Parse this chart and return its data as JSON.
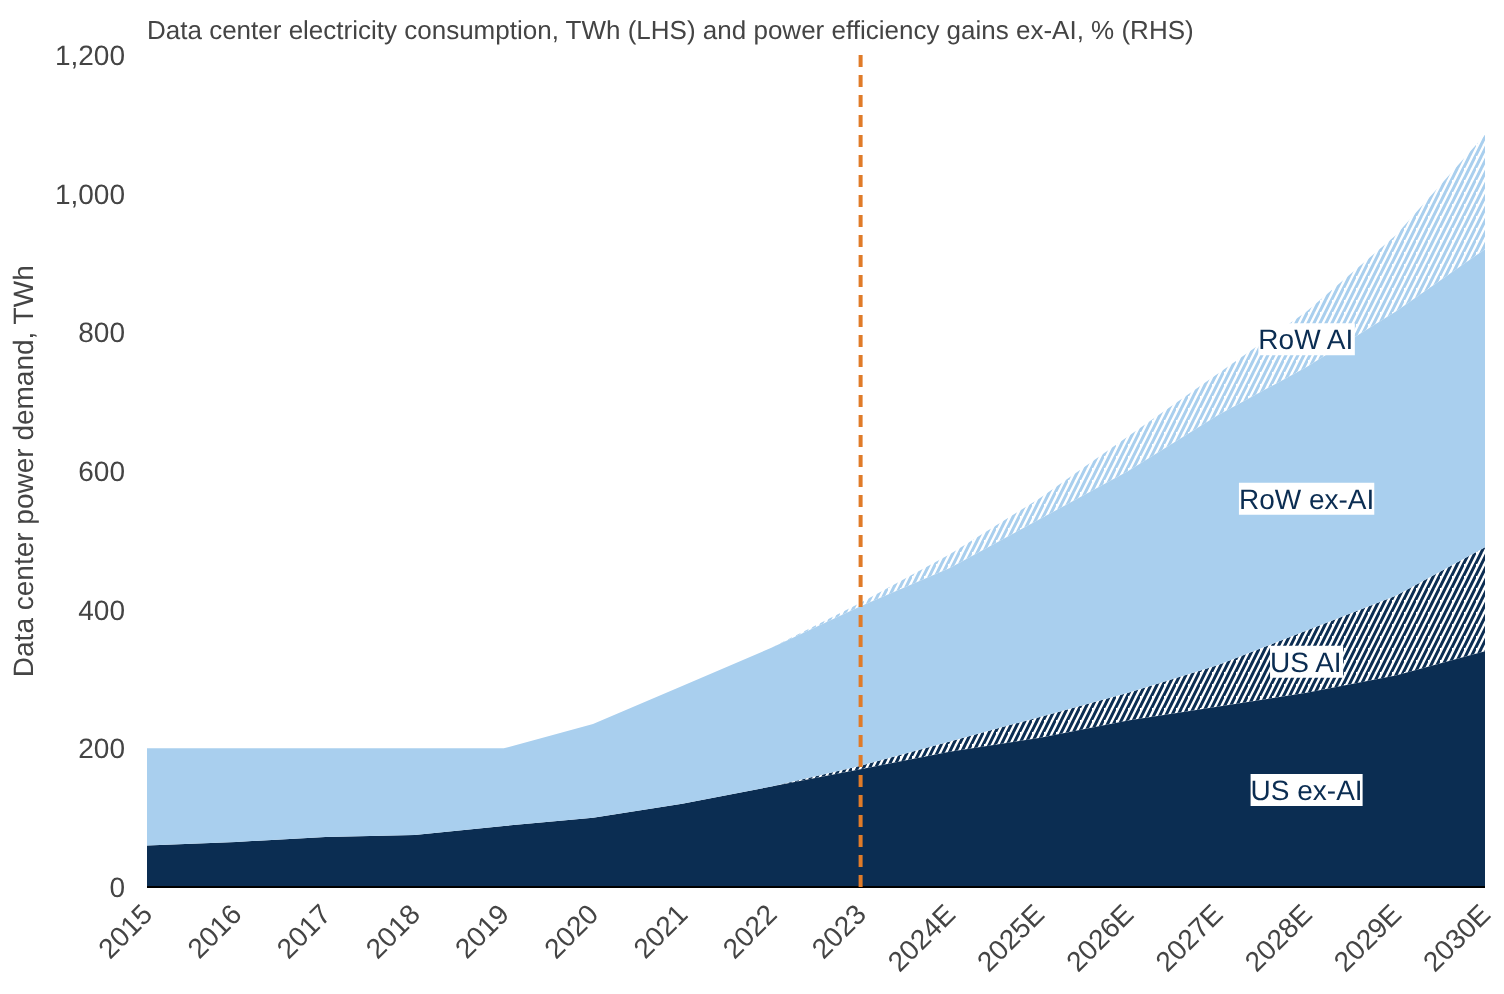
{
  "chart_data": {
    "type": "area",
    "stacked": true,
    "title": "Data center electricity consumption, TWh (LHS) and power efficiency gains ex-AI, % (RHS)",
    "ylabel": "Data center power demand, TWh",
    "categories": [
      "2015",
      "2016",
      "2017",
      "2018",
      "2019",
      "2020",
      "2021",
      "2022",
      "2023",
      "2024E",
      "2025E",
      "2026E",
      "2027E",
      "2028E",
      "2029E",
      "2030E"
    ],
    "series": [
      {
        "name": "US ex-AI",
        "color": "#0b2d52",
        "values": [
          60,
          65,
          72,
          75,
          88,
          100,
          120,
          145,
          170,
          195,
          215,
          240,
          260,
          280,
          305,
          340
        ]
      },
      {
        "name": "US AI",
        "color": "#0b2d52",
        "values": [
          0,
          0,
          0,
          0,
          0,
          0,
          0,
          0,
          5,
          15,
          30,
          40,
          60,
          90,
          115,
          150
        ]
      },
      {
        "name": "RoW ex-AI",
        "color": "#a9cfee",
        "values": [
          140,
          135,
          128,
          125,
          112,
          135,
          170,
          200,
          230,
          250,
          285,
          320,
          360,
          380,
          410,
          430
        ]
      },
      {
        "name": "RoW AI",
        "color": "#a9cfee",
        "values": [
          0,
          0,
          0,
          0,
          0,
          0,
          0,
          0,
          5,
          20,
          30,
          50,
          60,
          80,
          110,
          165
        ]
      }
    ],
    "ylim": [
      0,
      1200
    ],
    "yticks": [
      {
        "value": 0,
        "label": "0"
      },
      {
        "value": 200,
        "label": "200"
      },
      {
        "value": 400,
        "label": "400"
      },
      {
        "value": 600,
        "label": "600"
      },
      {
        "value": 800,
        "label": "800"
      },
      {
        "value": 1000,
        "label": "1,000"
      },
      {
        "value": 1200,
        "label": "1,200"
      }
    ],
    "ref_lines": [
      {
        "axis": "x",
        "value": "2023",
        "color": "#e07b28",
        "line_style": "dashed"
      }
    ],
    "grid": false
  }
}
